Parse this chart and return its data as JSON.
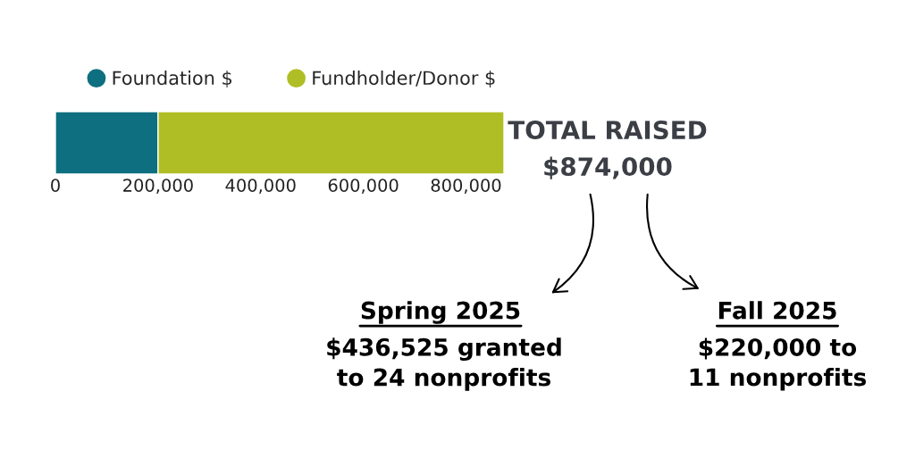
{
  "chart_data": {
    "type": "bar",
    "orientation": "horizontal",
    "stacked": true,
    "categories": [
      null
    ],
    "series": [
      {
        "name": "Foundation $",
        "color": "#0e6f80",
        "values": [
          200000
        ]
      },
      {
        "name": "Fundholder/Donor $",
        "color": "#b0be25",
        "values": [
          674000
        ]
      }
    ],
    "xticks": [
      0,
      {
        "value": 200000,
        "label": "200,000"
      },
      {
        "value": 400000,
        "label": "400,000"
      },
      {
        "value": 600000,
        "label": "600,000"
      },
      {
        "value": 800000,
        "label": "800,000"
      }
    ],
    "xlim": [
      0,
      874000
    ],
    "legend": "top left",
    "annotations": [
      "TOTAL RAISED",
      "$874,000",
      "Spring 2025",
      "$436,525 granted\nto 24 nonprofits",
      "Fall 2025",
      "$220,000 to\n11 nonprofits"
    ]
  }
}
